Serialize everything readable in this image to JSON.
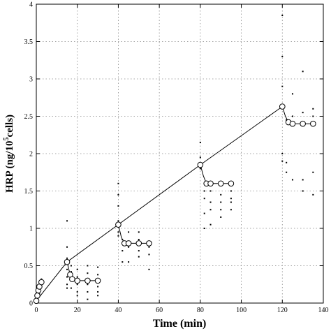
{
  "chart_data": {
    "type": "scatter",
    "xlabel": "Time  (min)",
    "ylabel_parts": [
      "HRP  (ng/10",
      "5",
      "cells)"
    ],
    "xlim": [
      0,
      140
    ],
    "ylim": [
      0,
      4
    ],
    "x_ticks": [
      0,
      20,
      40,
      60,
      80,
      100,
      120,
      140
    ],
    "y_ticks": [
      0,
      0.5,
      1,
      1.5,
      2,
      2.5,
      3,
      3.5,
      4
    ],
    "x_tick_labels": [
      "0",
      "20",
      "40",
      "60",
      "80",
      "100",
      "120",
      "140"
    ],
    "y_tick_labels": [
      "0",
      "0.5",
      "1",
      "1.5",
      "2",
      "2.5",
      "3",
      "3.5",
      "4"
    ],
    "grid": true,
    "main_line": [
      [
        0,
        0.03
      ],
      [
        15,
        0.55
      ],
      [
        40,
        1.05
      ],
      [
        80,
        1.85
      ],
      [
        120,
        2.63
      ]
    ],
    "early_segment": [
      [
        0,
        0.03
      ],
      [
        0.5,
        0.1
      ],
      [
        1,
        0.17
      ],
      [
        1.5,
        0.22
      ],
      [
        2.5,
        0.28
      ]
    ],
    "recovery_segments": [
      [
        [
          15,
          0.55
        ],
        [
          16.5,
          0.38
        ],
        [
          17.5,
          0.32
        ],
        [
          20,
          0.3
        ],
        [
          25,
          0.3
        ],
        [
          30,
          0.3
        ]
      ],
      [
        [
          40,
          1.05
        ],
        [
          41.5,
          0.88
        ],
        [
          43,
          0.8
        ],
        [
          45,
          0.8
        ],
        [
          50,
          0.8
        ],
        [
          55,
          0.8
        ]
      ],
      [
        [
          80,
          1.85
        ],
        [
          81.5,
          1.7
        ],
        [
          83,
          1.6
        ],
        [
          85,
          1.6
        ],
        [
          90,
          1.6
        ],
        [
          95,
          1.6
        ]
      ],
      [
        [
          120,
          2.63
        ],
        [
          121.5,
          2.5
        ],
        [
          123,
          2.42
        ],
        [
          125,
          2.4
        ],
        [
          130,
          2.4
        ],
        [
          135,
          2.4
        ]
      ]
    ],
    "mean_points": [
      [
        0,
        0.03
      ],
      [
        0.5,
        0.1
      ],
      [
        1,
        0.17
      ],
      [
        1.5,
        0.22
      ],
      [
        2.5,
        0.28
      ],
      [
        15,
        0.55
      ],
      [
        16.5,
        0.38
      ],
      [
        17.5,
        0.32
      ],
      [
        20,
        0.3
      ],
      [
        25,
        0.3
      ],
      [
        30,
        0.3
      ],
      [
        40,
        1.05
      ],
      [
        43,
        0.8
      ],
      [
        45,
        0.8
      ],
      [
        50,
        0.8
      ],
      [
        55,
        0.8
      ],
      [
        80,
        1.85
      ],
      [
        83,
        1.6
      ],
      [
        85,
        1.6
      ],
      [
        90,
        1.6
      ],
      [
        95,
        1.6
      ],
      [
        120,
        2.63
      ],
      [
        123,
        2.42
      ],
      [
        125,
        2.4
      ],
      [
        130,
        2.4
      ],
      [
        135,
        2.4
      ]
    ],
    "raw_points": [
      [
        0,
        0.0
      ],
      [
        0,
        0.05
      ],
      [
        0.5,
        0.02
      ],
      [
        0.5,
        0.08
      ],
      [
        1,
        0.1
      ],
      [
        1,
        0.15
      ],
      [
        1.5,
        0.12
      ],
      [
        1.5,
        0.2
      ],
      [
        2,
        0.18
      ],
      [
        2,
        0.25
      ],
      [
        2.5,
        0.22
      ],
      [
        2.5,
        0.32
      ],
      [
        15,
        1.1
      ],
      [
        15,
        0.75
      ],
      [
        15,
        0.6
      ],
      [
        15,
        0.45
      ],
      [
        15,
        0.35
      ],
      [
        15,
        0.25
      ],
      [
        15,
        0.2
      ],
      [
        17,
        0.5
      ],
      [
        17,
        0.42
      ],
      [
        17,
        0.3
      ],
      [
        17,
        0.2
      ],
      [
        20,
        0.45
      ],
      [
        20,
        0.35
      ],
      [
        20,
        0.25
      ],
      [
        20,
        0.15
      ],
      [
        20,
        0.1
      ],
      [
        25,
        0.5
      ],
      [
        25,
        0.4
      ],
      [
        25,
        0.25
      ],
      [
        25,
        0.15
      ],
      [
        25,
        0.05
      ],
      [
        30,
        0.48
      ],
      [
        30,
        0.38
      ],
      [
        30,
        0.22
      ],
      [
        30,
        0.15
      ],
      [
        30,
        0.1
      ],
      [
        40,
        1.6
      ],
      [
        40,
        1.45
      ],
      [
        40,
        1.3
      ],
      [
        40,
        1.1
      ],
      [
        40,
        0.95
      ],
      [
        40,
        0.9
      ],
      [
        42,
        0.85
      ],
      [
        42,
        0.7
      ],
      [
        42,
        0.55
      ],
      [
        45,
        0.95
      ],
      [
        45,
        0.75
      ],
      [
        45,
        0.55
      ],
      [
        50,
        0.95
      ],
      [
        50,
        0.85
      ],
      [
        50,
        0.7
      ],
      [
        50,
        0.62
      ],
      [
        55,
        0.75
      ],
      [
        55,
        0.65
      ],
      [
        55,
        0.45
      ],
      [
        80,
        2.15
      ],
      [
        80,
        1.95
      ],
      [
        80,
        1.8
      ],
      [
        82,
        1.5
      ],
      [
        82,
        1.4
      ],
      [
        82,
        1.2
      ],
      [
        82,
        1.0
      ],
      [
        85,
        1.6
      ],
      [
        85,
        1.5
      ],
      [
        85,
        1.35
      ],
      [
        85,
        1.25
      ],
      [
        85,
        1.05
      ],
      [
        90,
        1.45
      ],
      [
        90,
        1.35
      ],
      [
        90,
        1.25
      ],
      [
        90,
        1.15
      ],
      [
        95,
        1.5
      ],
      [
        95,
        1.4
      ],
      [
        95,
        1.35
      ],
      [
        95,
        1.25
      ],
      [
        120,
        3.85
      ],
      [
        120,
        3.3
      ],
      [
        120,
        2.9
      ],
      [
        120,
        2.0
      ],
      [
        120,
        1.9
      ],
      [
        122,
        2.45
      ],
      [
        122,
        1.88
      ],
      [
        122,
        1.75
      ],
      [
        125,
        2.8
      ],
      [
        125,
        2.5
      ],
      [
        125,
        1.65
      ],
      [
        130,
        3.1
      ],
      [
        130,
        2.55
      ],
      [
        130,
        1.65
      ],
      [
        130,
        1.5
      ],
      [
        135,
        2.6
      ],
      [
        135,
        2.5
      ],
      [
        135,
        1.75
      ],
      [
        135,
        1.45
      ]
    ]
  }
}
